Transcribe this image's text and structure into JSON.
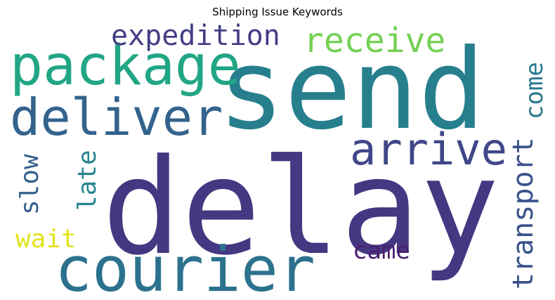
{
  "chart_data": {
    "type": "wordcloud",
    "title": "Shipping Issue Keywords",
    "words": [
      {
        "text": "send",
        "weight": 100,
        "color": "#277f8e"
      },
      {
        "text": "delay",
        "weight": 98,
        "color": "#453781"
      },
      {
        "text": "courier",
        "weight": 52,
        "color": "#2c728e"
      },
      {
        "text": "package",
        "weight": 48,
        "color": "#21a685"
      },
      {
        "text": "deliver",
        "weight": 45,
        "color": "#33638d"
      },
      {
        "text": "arrive",
        "weight": 38,
        "color": "#404788"
      },
      {
        "text": "receive",
        "weight": 30,
        "color": "#75d054"
      },
      {
        "text": "expedition",
        "weight": 26,
        "color": "#433e85"
      },
      {
        "text": "transport",
        "weight": 25,
        "color": "#3b518b"
      },
      {
        "text": "came",
        "weight": 20,
        "color": "#481f70"
      },
      {
        "text": "late",
        "weight": 22,
        "color": "#25858e"
      },
      {
        "text": "slow",
        "weight": 22,
        "color": "#355f8d"
      },
      {
        "text": "wait",
        "weight": 20,
        "color": "#e2e418"
      },
      {
        "text": "come",
        "weight": 20,
        "color": "#2a788e"
      }
    ]
  }
}
